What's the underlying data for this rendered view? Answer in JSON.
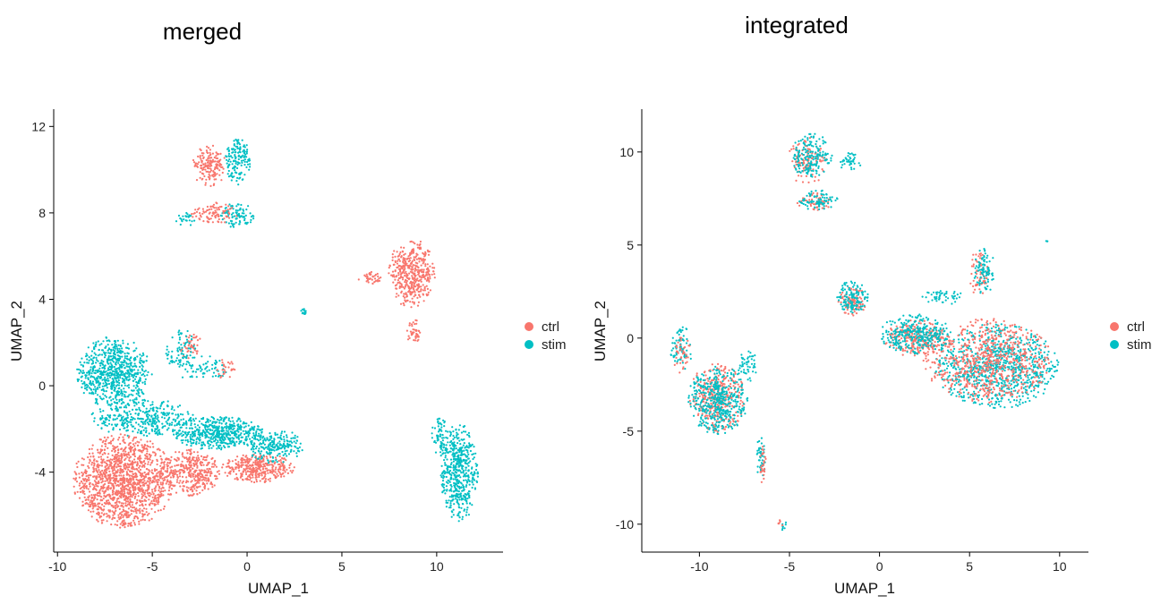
{
  "colors": {
    "ctrl": "#F8766D",
    "stim": "#00BFC4",
    "axis": "#000000"
  },
  "chart_data": [
    {
      "type": "scatter",
      "title": "merged",
      "xlabel": "UMAP_1",
      "ylabel": "UMAP_2",
      "xlim": [
        -10.2,
        13.5
      ],
      "ylim": [
        -7.7,
        12.8
      ],
      "xticks": [
        -10,
        -5,
        0,
        5,
        10
      ],
      "yticks": [
        -4,
        0,
        4,
        8,
        12
      ],
      "legend_position": "right",
      "series": [
        {
          "name": "ctrl",
          "color": "#F8766D",
          "clusters": [
            {
              "cx": -6.5,
              "cy": -4.4,
              "rx": 2.7,
              "ry": 2.2,
              "n": 1400
            },
            {
              "cx": -3.0,
              "cy": -4.0,
              "rx": 1.6,
              "ry": 1.1,
              "n": 350
            },
            {
              "cx": 0.6,
              "cy": -3.8,
              "rx": 2.0,
              "ry": 0.7,
              "n": 350
            },
            {
              "cx": -2.0,
              "cy": 10.2,
              "rx": 0.9,
              "ry": 1.0,
              "n": 160
            },
            {
              "cx": -1.8,
              "cy": 8.0,
              "rx": 1.4,
              "ry": 0.5,
              "n": 90
            },
            {
              "cx": 8.7,
              "cy": 5.2,
              "rx": 1.3,
              "ry": 1.6,
              "n": 420
            },
            {
              "cx": 8.8,
              "cy": 2.5,
              "rx": 0.4,
              "ry": 0.6,
              "n": 40
            },
            {
              "cx": 6.5,
              "cy": 5.0,
              "rx": 0.7,
              "ry": 0.3,
              "n": 40
            },
            {
              "cx": -3.0,
              "cy": 1.8,
              "rx": 0.6,
              "ry": 0.8,
              "n": 50
            },
            {
              "cx": -1.2,
              "cy": 0.8,
              "rx": 0.6,
              "ry": 0.5,
              "n": 25
            }
          ]
        },
        {
          "name": "stim",
          "color": "#00BFC4",
          "clusters": [
            {
              "cx": -7.0,
              "cy": 0.6,
              "rx": 2.0,
              "ry": 1.7,
              "n": 700
            },
            {
              "cx": -5.5,
              "cy": -1.5,
              "rx": 2.8,
              "ry": 0.9,
              "n": 350
            },
            {
              "cx": -1.5,
              "cy": -2.2,
              "rx": 2.4,
              "ry": 0.8,
              "n": 500
            },
            {
              "cx": 1.5,
              "cy": -2.8,
              "rx": 1.5,
              "ry": 0.8,
              "n": 220
            },
            {
              "cx": -3.5,
              "cy": 1.5,
              "rx": 0.8,
              "ry": 1.2,
              "n": 80
            },
            {
              "cx": -2.2,
              "cy": 0.8,
              "rx": 1.2,
              "ry": 0.6,
              "n": 60
            },
            {
              "cx": -0.5,
              "cy": 10.4,
              "rx": 0.7,
              "ry": 1.1,
              "n": 150
            },
            {
              "cx": -0.5,
              "cy": 7.9,
              "rx": 0.9,
              "ry": 0.6,
              "n": 90
            },
            {
              "cx": -3.2,
              "cy": 7.7,
              "rx": 0.6,
              "ry": 0.3,
              "n": 25
            },
            {
              "cx": 11.2,
              "cy": -4.0,
              "rx": 1.0,
              "ry": 2.3,
              "n": 500
            },
            {
              "cx": 10.2,
              "cy": -2.4,
              "rx": 0.5,
              "ry": 0.9,
              "n": 70
            },
            {
              "cx": 3.0,
              "cy": 3.4,
              "rx": 0.2,
              "ry": 0.2,
              "n": 12
            }
          ]
        }
      ]
    },
    {
      "type": "scatter",
      "title": "integrated",
      "xlabel": "UMAP_1",
      "ylabel": "UMAP_2",
      "xlim": [
        -13.2,
        11.6
      ],
      "ylim": [
        -11.5,
        12.3
      ],
      "xticks": [
        -10,
        -5,
        0,
        5,
        10
      ],
      "yticks": [
        -10,
        -5,
        0,
        5,
        10
      ],
      "legend_position": "right",
      "series": [
        {
          "name": "ctrl",
          "color": "#F8766D",
          "clusters": [
            {
              "cx": 6.0,
              "cy": -1.2,
              "rx": 3.6,
              "ry": 2.3,
              "n": 700
            },
            {
              "cx": 2.0,
              "cy": 0.0,
              "rx": 1.8,
              "ry": 1.0,
              "n": 250
            },
            {
              "cx": -1.5,
              "cy": 2.0,
              "rx": 0.8,
              "ry": 0.8,
              "n": 90
            },
            {
              "cx": 5.5,
              "cy": 3.5,
              "rx": 0.6,
              "ry": 1.2,
              "n": 60
            },
            {
              "cx": -9.0,
              "cy": -3.2,
              "rx": 1.6,
              "ry": 1.9,
              "n": 350
            },
            {
              "cx": -11.0,
              "cy": -0.8,
              "rx": 0.5,
              "ry": 1.2,
              "n": 40
            },
            {
              "cx": -6.5,
              "cy": -6.8,
              "rx": 0.2,
              "ry": 1.1,
              "n": 30
            },
            {
              "cx": -4.0,
              "cy": 9.5,
              "rx": 1.1,
              "ry": 1.3,
              "n": 120
            },
            {
              "cx": -3.6,
              "cy": 7.3,
              "rx": 1.0,
              "ry": 0.5,
              "n": 50
            },
            {
              "cx": -5.5,
              "cy": -10.0,
              "rx": 0.15,
              "ry": 0.3,
              "n": 6
            }
          ]
        },
        {
          "name": "stim",
          "color": "#00BFC4",
          "clusters": [
            {
              "cx": 6.5,
              "cy": -1.5,
              "rx": 3.5,
              "ry": 2.3,
              "n": 900
            },
            {
              "cx": 2.0,
              "cy": 0.2,
              "rx": 2.0,
              "ry": 1.1,
              "n": 320
            },
            {
              "cx": -1.5,
              "cy": 2.2,
              "rx": 0.9,
              "ry": 0.9,
              "n": 130
            },
            {
              "cx": 5.8,
              "cy": 3.6,
              "rx": 0.6,
              "ry": 1.3,
              "n": 90
            },
            {
              "cx": 3.5,
              "cy": 2.2,
              "rx": 1.2,
              "ry": 0.4,
              "n": 50
            },
            {
              "cx": -9.0,
              "cy": -3.3,
              "rx": 1.7,
              "ry": 1.9,
              "n": 450
            },
            {
              "cx": -11.0,
              "cy": -0.6,
              "rx": 0.6,
              "ry": 1.3,
              "n": 70
            },
            {
              "cx": -6.6,
              "cy": -6.5,
              "rx": 0.25,
              "ry": 1.2,
              "n": 45
            },
            {
              "cx": -7.3,
              "cy": -1.6,
              "rx": 0.6,
              "ry": 0.9,
              "n": 50
            },
            {
              "cx": -3.8,
              "cy": 9.8,
              "rx": 1.2,
              "ry": 1.2,
              "n": 180
            },
            {
              "cx": -3.4,
              "cy": 7.4,
              "rx": 1.1,
              "ry": 0.6,
              "n": 80
            },
            {
              "cx": -1.6,
              "cy": 9.5,
              "rx": 0.7,
              "ry": 0.5,
              "n": 40
            },
            {
              "cx": -5.3,
              "cy": -10.1,
              "rx": 0.15,
              "ry": 0.3,
              "n": 8
            },
            {
              "cx": 9.3,
              "cy": 5.2,
              "rx": 0.05,
              "ry": 0.05,
              "n": 3
            }
          ]
        }
      ]
    }
  ]
}
